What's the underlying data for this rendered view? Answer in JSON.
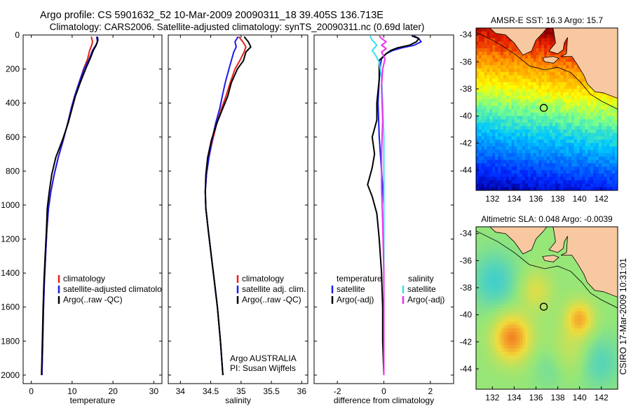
{
  "title_line1": "Argo profile: CS 5901632_52 10-Mar-2009 20090311_18 39.405S 136.713E",
  "title_line2": "Climatology: CARS2006. Satellite-adjusted climatology: synTS_20090311.nc (0.69d later)",
  "side_label": "CSIRO 17-Mar-2009 10:31:01",
  "colors": {
    "climatology": "#e8201c",
    "satellite": "#1c1ce8",
    "argo": "#000000",
    "satellite_diff": "#38e0ee",
    "argo_adj": "#ee30ee",
    "land": "#f8c8a0"
  },
  "chart_data": [
    {
      "type": "line",
      "id": "temperature",
      "xlabel": "temperature",
      "ylabel": "",
      "xlim": [
        -2,
        32
      ],
      "ylim": [
        2050,
        0
      ],
      "xticks": [
        0,
        10,
        20,
        30
      ],
      "yticks": [
        0,
        200,
        400,
        600,
        800,
        1000,
        1200,
        1400,
        1600,
        1800,
        2000
      ],
      "legend": {
        "placement": "lower-center",
        "entries": [
          "climatology",
          "satellite-adjusted climatology",
          "Argo(..raw -QC)"
        ]
      },
      "series": [
        {
          "name": "climatology",
          "color": "#e8201c",
          "points": [
            [
              14.7,
              10
            ],
            [
              15.0,
              40
            ],
            [
              14.8,
              60
            ],
            [
              14.3,
              90
            ],
            [
              13.8,
              140
            ],
            [
              12.8,
              200
            ],
            [
              11.7,
              280
            ],
            [
              10.6,
              360
            ],
            [
              9.8,
              430
            ],
            [
              8.9,
              520
            ],
            [
              7.8,
              620
            ],
            [
              6.6,
              720
            ],
            [
              5.6,
              820
            ],
            [
              4.8,
              920
            ],
            [
              4.2,
              1020
            ],
            [
              3.8,
              1150
            ],
            [
              3.5,
              1300
            ],
            [
              3.2,
              1450
            ],
            [
              3.0,
              1600
            ],
            [
              2.8,
              1800
            ],
            [
              2.6,
              2000
            ]
          ]
        },
        {
          "name": "satellite-adjusted climatology",
          "color": "#1c1ce8",
          "points": [
            [
              16.0,
              10
            ],
            [
              16.2,
              40
            ],
            [
              15.8,
              60
            ],
            [
              15.0,
              90
            ],
            [
              14.2,
              140
            ],
            [
              12.9,
              200
            ],
            [
              11.7,
              280
            ],
            [
              10.6,
              360
            ],
            [
              9.8,
              430
            ],
            [
              8.9,
              520
            ],
            [
              7.8,
              620
            ],
            [
              6.6,
              720
            ],
            [
              5.6,
              820
            ],
            [
              4.8,
              920
            ],
            [
              4.2,
              1020
            ],
            [
              3.8,
              1150
            ],
            [
              3.5,
              1300
            ],
            [
              3.2,
              1450
            ],
            [
              3.0,
              1600
            ],
            [
              2.8,
              1800
            ],
            [
              2.6,
              2000
            ]
          ]
        },
        {
          "name": "Argo(..raw -QC)",
          "color": "#000000",
          "points": [
            [
              16.2,
              10
            ],
            [
              16.3,
              30
            ],
            [
              15.9,
              60
            ],
            [
              15.2,
              90
            ],
            [
              14.4,
              140
            ],
            [
              13.3,
              200
            ],
            [
              12.0,
              280
            ],
            [
              10.8,
              360
            ],
            [
              10.0,
              430
            ],
            [
              9.0,
              520
            ],
            [
              7.6,
              620
            ],
            [
              6.0,
              720
            ],
            [
              5.0,
              820
            ],
            [
              4.4,
              920
            ],
            [
              3.9,
              1020
            ],
            [
              3.7,
              1150
            ],
            [
              3.4,
              1300
            ],
            [
              3.1,
              1450
            ],
            [
              2.9,
              1600
            ],
            [
              2.7,
              1800
            ],
            [
              2.5,
              2000
            ]
          ]
        }
      ]
    },
    {
      "type": "line",
      "id": "salinity",
      "xlabel": "salinity",
      "ylabel": "",
      "xlim": [
        33.8,
        36.1
      ],
      "ylim": [
        2050,
        0
      ],
      "xticks": [
        34,
        34.5,
        35,
        35.5,
        36
      ],
      "yticks": [
        0,
        200,
        400,
        600,
        800,
        1000,
        1200,
        1400,
        1600,
        1800,
        2000
      ],
      "legend": {
        "placement": "lower-center",
        "entries": [
          "climatology",
          "satellite adj. clim.",
          "Argo(..raw -QC)"
        ]
      },
      "annotations": [
        "Argo AUSTRALIA",
        "PI: Susan Wijffels"
      ],
      "series": [
        {
          "name": "climatology",
          "color": "#e8201c",
          "points": [
            [
              34.96,
              10
            ],
            [
              35.03,
              40
            ],
            [
              35.08,
              70
            ],
            [
              35.05,
              100
            ],
            [
              34.98,
              150
            ],
            [
              34.9,
              200
            ],
            [
              34.82,
              280
            ],
            [
              34.75,
              360
            ],
            [
              34.68,
              430
            ],
            [
              34.6,
              520
            ],
            [
              34.53,
              620
            ],
            [
              34.47,
              720
            ],
            [
              34.43,
              820
            ],
            [
              34.41,
              920
            ],
            [
              34.42,
              1020
            ],
            [
              34.46,
              1150
            ],
            [
              34.51,
              1300
            ],
            [
              34.56,
              1450
            ],
            [
              34.61,
              1600
            ],
            [
              34.66,
              1800
            ],
            [
              34.7,
              2000
            ]
          ]
        },
        {
          "name": "satellite adj. clim.",
          "color": "#1c1ce8",
          "points": [
            [
              34.95,
              10
            ],
            [
              34.9,
              40
            ],
            [
              34.92,
              70
            ],
            [
              34.88,
              100
            ],
            [
              34.84,
              150
            ],
            [
              34.8,
              200
            ],
            [
              34.74,
              280
            ],
            [
              34.69,
              360
            ],
            [
              34.65,
              430
            ],
            [
              34.58,
              520
            ],
            [
              34.52,
              620
            ],
            [
              34.47,
              720
            ],
            [
              34.43,
              820
            ],
            [
              34.41,
              920
            ],
            [
              34.42,
              1020
            ],
            [
              34.46,
              1150
            ],
            [
              34.51,
              1300
            ],
            [
              34.56,
              1450
            ],
            [
              34.61,
              1600
            ],
            [
              34.66,
              1800
            ],
            [
              34.7,
              2000
            ]
          ]
        },
        {
          "name": "Argo(..raw -QC)",
          "color": "#000000",
          "points": [
            [
              35.05,
              10
            ],
            [
              35.12,
              40
            ],
            [
              35.16,
              70
            ],
            [
              35.08,
              100
            ],
            [
              35.04,
              150
            ],
            [
              34.94,
              200
            ],
            [
              34.84,
              280
            ],
            [
              34.78,
              360
            ],
            [
              34.7,
              430
            ],
            [
              34.6,
              520
            ],
            [
              34.51,
              620
            ],
            [
              34.45,
              720
            ],
            [
              34.42,
              820
            ],
            [
              34.41,
              920
            ],
            [
              34.42,
              1020
            ],
            [
              34.46,
              1150
            ],
            [
              34.51,
              1300
            ],
            [
              34.56,
              1450
            ],
            [
              34.61,
              1600
            ],
            [
              34.66,
              1800
            ],
            [
              34.7,
              2000
            ]
          ]
        }
      ]
    },
    {
      "type": "line",
      "id": "difference",
      "xlabel": "difference from climatology",
      "ylabel": "",
      "xlim": [
        -3,
        3
      ],
      "ylim": [
        2050,
        0
      ],
      "xticks": [
        -2,
        0,
        2
      ],
      "yticks": [
        0,
        200,
        400,
        600,
        800,
        1000,
        1200,
        1400,
        1600,
        1800,
        2000
      ],
      "legend": {
        "placement": "lower-center",
        "left_title": "temperature",
        "right_title": "salinity",
        "left_entries": [
          "satellite",
          "Argo(-adj)"
        ],
        "right_entries": [
          "satellite",
          "Argo(-adj)"
        ]
      },
      "series": [
        {
          "name": "temperature satellite",
          "color": "#1c1ce8",
          "points": [
            [
              1.3,
              5
            ],
            [
              1.5,
              20
            ],
            [
              1.6,
              40
            ],
            [
              1.3,
              60
            ],
            [
              0.8,
              75
            ],
            [
              0.4,
              90
            ],
            [
              0.1,
              110
            ],
            [
              -0.1,
              140
            ],
            [
              -0.15,
              180
            ],
            [
              -0.2,
              260
            ],
            [
              -0.25,
              400
            ],
            [
              -0.2,
              600
            ],
            [
              -0.1,
              800
            ],
            [
              0,
              1000
            ],
            [
              0,
              1400
            ],
            [
              0,
              2000
            ]
          ]
        },
        {
          "name": "temperature Argo(-adj)",
          "color": "#000000",
          "points": [
            [
              1.2,
              5
            ],
            [
              1.5,
              20
            ],
            [
              1.4,
              40
            ],
            [
              1.1,
              60
            ],
            [
              0.6,
              75
            ],
            [
              0.3,
              90
            ],
            [
              0.1,
              110
            ],
            [
              -0.2,
              150
            ],
            [
              -0.2,
              260
            ],
            [
              -0.3,
              400
            ],
            [
              -0.3,
              500
            ],
            [
              -0.5,
              600
            ],
            [
              -0.4,
              700
            ],
            [
              -0.5,
              780
            ],
            [
              -0.7,
              880
            ],
            [
              -0.5,
              950
            ],
            [
              -0.3,
              1050
            ],
            [
              -0.2,
              1200
            ],
            [
              -0.1,
              1400
            ],
            [
              -0.05,
              1600
            ],
            [
              -0.05,
              1800
            ],
            [
              0,
              2000
            ]
          ]
        },
        {
          "name": "salinity satellite",
          "color": "#38e0ee",
          "points": [
            [
              -0.6,
              5
            ],
            [
              -0.5,
              30
            ],
            [
              -0.3,
              60
            ],
            [
              -0.5,
              90
            ],
            [
              -0.35,
              120
            ],
            [
              -0.2,
              160
            ],
            [
              -0.1,
              250
            ],
            [
              -0.05,
              400
            ],
            [
              0,
              600
            ],
            [
              0,
              800
            ],
            [
              0,
              1200
            ],
            [
              0,
              2000
            ]
          ]
        },
        {
          "name": "salinity Argo(-adj)",
          "color": "#ee30ee",
          "points": [
            [
              -0.2,
              5
            ],
            [
              -0.1,
              20
            ],
            [
              0.1,
              40
            ],
            [
              -0.1,
              60
            ],
            [
              0.1,
              80
            ],
            [
              -0.1,
              100
            ],
            [
              0.05,
              140
            ],
            [
              -0.05,
              200
            ],
            [
              -0.1,
              300
            ],
            [
              -0.05,
              500
            ],
            [
              -0.1,
              700
            ],
            [
              -0.1,
              900
            ],
            [
              -0.05,
              1100
            ],
            [
              0,
              1400
            ],
            [
              0,
              2000
            ]
          ]
        }
      ]
    },
    {
      "type": "heatmap",
      "id": "sst_map",
      "title": "AMSR-E SST: 16.3 Argo: 15.7",
      "xlim": [
        130.5,
        143.5
      ],
      "ylim": [
        -45.5,
        -33.5
      ],
      "xticks": [
        132,
        134,
        136,
        138,
        140,
        142
      ],
      "yticks": [
        -34,
        -36,
        -38,
        -40,
        -42,
        -44
      ],
      "marker": {
        "lon": 136.713,
        "lat": -39.405
      },
      "value_range": [
        9,
        22
      ]
    },
    {
      "type": "heatmap",
      "id": "sla_map",
      "title": "Altimetric SLA: 0.048 Argo: -0.0039",
      "xlim": [
        130.5,
        143.5
      ],
      "ylim": [
        -45.5,
        -33.5
      ],
      "xticks": [
        132,
        134,
        136,
        138,
        140,
        142
      ],
      "yticks": [
        -34,
        -36,
        -38,
        -40,
        -42,
        -44
      ],
      "marker": {
        "lon": 136.713,
        "lat": -39.405
      },
      "value_range": [
        -0.3,
        0.3
      ]
    }
  ]
}
